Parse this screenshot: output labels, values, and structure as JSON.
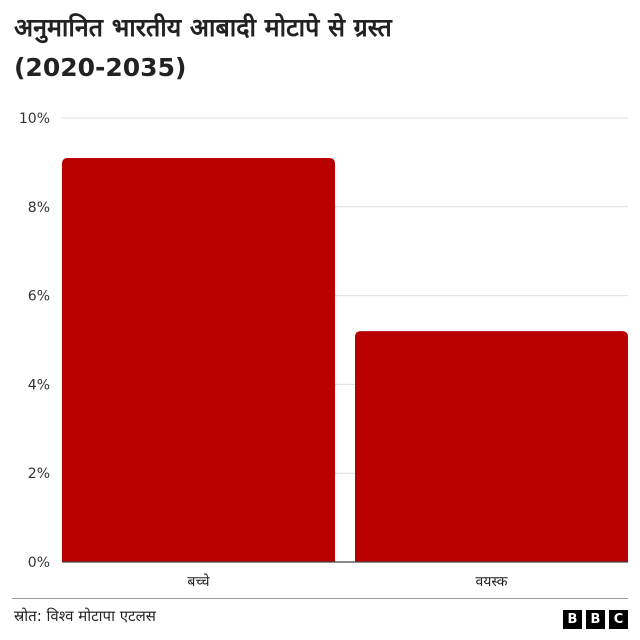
{
  "chart_data": {
    "type": "bar",
    "title_line1": "अनुमानित भारतीय आबादी मोटापे से ग्रस्त",
    "title_line2": "(2020-2035)",
    "categories": [
      "बच्चे",
      "वयस्क"
    ],
    "values": [
      9.1,
      5.2
    ],
    "ylim": [
      0,
      10
    ],
    "yticks": [
      0,
      2,
      4,
      6,
      8,
      10
    ],
    "ytick_labels": [
      "0%",
      "2%",
      "4%",
      "6%",
      "8%",
      "10%"
    ],
    "grid": true,
    "legend": "none",
    "bar_color": "#b80000"
  },
  "footer": {
    "source": "स्रोत: विश्व मोटापा एटलस",
    "logo_letters": [
      "B",
      "B",
      "C"
    ]
  }
}
